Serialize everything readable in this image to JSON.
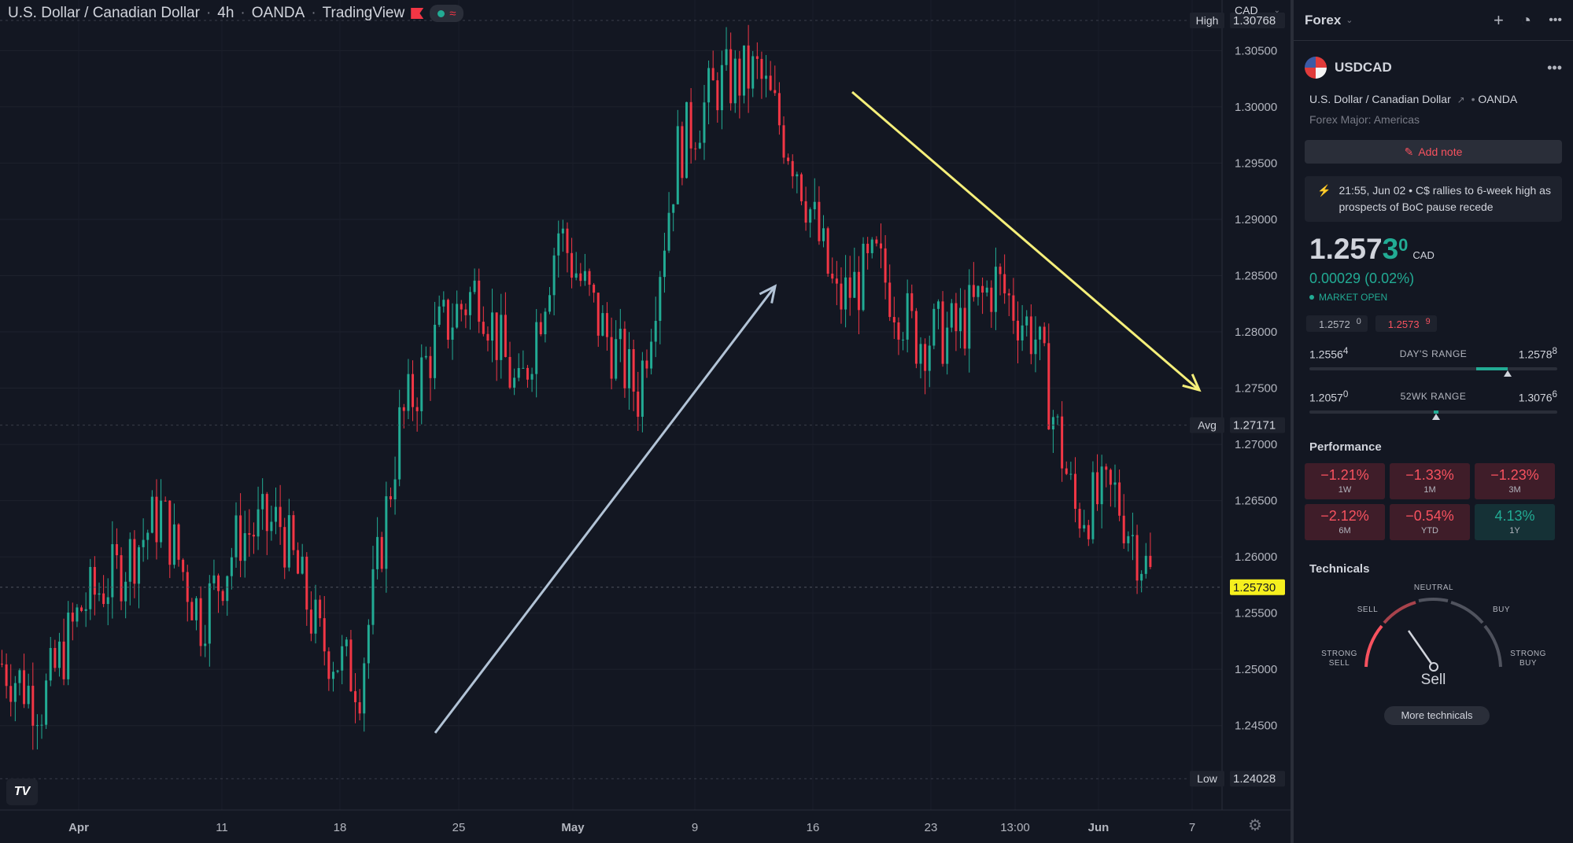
{
  "legend": {
    "symbol_name": "U.S. Dollar / Canadian Dollar",
    "interval": "4h",
    "exchange": "OANDA",
    "source": "TradingView"
  },
  "axis_currency": "CAD",
  "price_axis": {
    "labels": [
      "1.30500",
      "1.30000",
      "1.29500",
      "1.29000",
      "1.28500",
      "1.28000",
      "1.27500",
      "1.27000",
      "1.26500",
      "1.26000",
      "1.25500",
      "1.25000",
      "1.24500"
    ],
    "high_tag": "High",
    "high_value": "1.30768",
    "avg_tag": "Avg",
    "avg_value": "1.27171",
    "low_tag": "Low",
    "low_value": "1.24028",
    "last_value": "1.25730"
  },
  "time_axis": [
    "Apr",
    "11",
    "18",
    "25",
    "May",
    "9",
    "16",
    "23",
    "13:00",
    "Jun",
    "7"
  ],
  "colors": {
    "up": "#22ab94",
    "down": "#f23645",
    "up_arrow": "#b2c3d6",
    "down_arrow": "#f5ef7a",
    "last_tag": "#f5ef1e"
  },
  "chart_data": {
    "type": "candlestick",
    "title": "U.S. Dollar / Canadian Dollar",
    "interval": "4h",
    "ylim": [
      1.2375,
      1.3095
    ],
    "high": 1.30768,
    "low": 1.24028,
    "avg": 1.27171,
    "last": 1.2573,
    "close_path": [
      {
        "x": "Mar 31",
        "y": 1.2505
      },
      {
        "x": "Apr 5",
        "y": 1.247
      },
      {
        "x": "Apr 8",
        "y": 1.2555
      },
      {
        "x": "Apr 11",
        "y": 1.259
      },
      {
        "x": "Apr 14",
        "y": 1.264
      },
      {
        "x": "Apr 16",
        "y": 1.2545
      },
      {
        "x": "Apr 18",
        "y": 1.262
      },
      {
        "x": "Apr 20",
        "y": 1.263
      },
      {
        "x": "Apr 22",
        "y": 1.2525
      },
      {
        "x": "Apr 24",
        "y": 1.249
      },
      {
        "x": "Apr 26",
        "y": 1.2715
      },
      {
        "x": "Apr 28",
        "y": 1.28
      },
      {
        "x": "Apr 30",
        "y": 1.284
      },
      {
        "x": "May 2",
        "y": 1.274
      },
      {
        "x": "May 4",
        "y": 1.289
      },
      {
        "x": "May 6",
        "y": 1.281
      },
      {
        "x": "May 8",
        "y": 1.2745
      },
      {
        "x": "May 10",
        "y": 1.296
      },
      {
        "x": "May 12",
        "y": 1.302
      },
      {
        "x": "May 14",
        "y": 1.303
      },
      {
        "x": "May 16",
        "y": 1.295
      },
      {
        "x": "May 18",
        "y": 1.2825
      },
      {
        "x": "May 20",
        "y": 1.286
      },
      {
        "x": "May 22",
        "y": 1.2795
      },
      {
        "x": "May 24",
        "y": 1.28
      },
      {
        "x": "May 26",
        "y": 1.2845
      },
      {
        "x": "May 28",
        "y": 1.2795
      },
      {
        "x": "May 30",
        "y": 1.264
      },
      {
        "x": "Jun 1",
        "y": 1.2655
      },
      {
        "x": "Jun 2",
        "y": 1.2573
      }
    ]
  },
  "panel": {
    "header_title": "Forex",
    "symbol": "USDCAD",
    "description": "U.S. Dollar / Canadian Dollar",
    "exchange": "OANDA",
    "category": "Forex Major: Americas",
    "add_note": "Add note",
    "news": "21:55, Jun 02 • C$ rallies to 6-week high as prospects of BoC pause recede",
    "price_main": "1.257",
    "price_last": "3",
    "price_sup": "0",
    "price_currency": "CAD",
    "change": "0.00029 (0.02%)",
    "market_status": "MARKET OPEN",
    "bid": "1.2572",
    "bid_sup": "0",
    "ask": "1.2573",
    "ask_sup": "9",
    "days_range_low": "1.2556",
    "days_range_low_sup": "4",
    "days_range_label": "DAY'S RANGE",
    "days_range_high": "1.2578",
    "days_range_high_sup": "8",
    "days_range_position": 0.8,
    "wk52_low": "1.2057",
    "wk52_low_sup": "0",
    "wk52_label": "52WK RANGE",
    "wk52_high": "1.3076",
    "wk52_high_sup": "6",
    "wk52_position": 0.51,
    "performance_title": "Performance",
    "performance": [
      {
        "value": "−1.21%",
        "label": "1W",
        "dir": "down"
      },
      {
        "value": "−1.33%",
        "label": "1M",
        "dir": "down"
      },
      {
        "value": "−1.23%",
        "label": "3M",
        "dir": "down"
      },
      {
        "value": "−2.12%",
        "label": "6M",
        "dir": "down"
      },
      {
        "value": "−0.54%",
        "label": "YTD",
        "dir": "down"
      },
      {
        "value": "4.13%",
        "label": "1Y",
        "dir": "up"
      }
    ],
    "technicals_title": "Technicals",
    "gauge_labels": {
      "strong_sell": "STRONG\nSELL",
      "sell": "SELL",
      "neutral": "NEUTRAL",
      "buy": "BUY",
      "strong_buy": "STRONG\nBUY"
    },
    "verdict": "Sell",
    "more_technicals": "More technicals"
  }
}
